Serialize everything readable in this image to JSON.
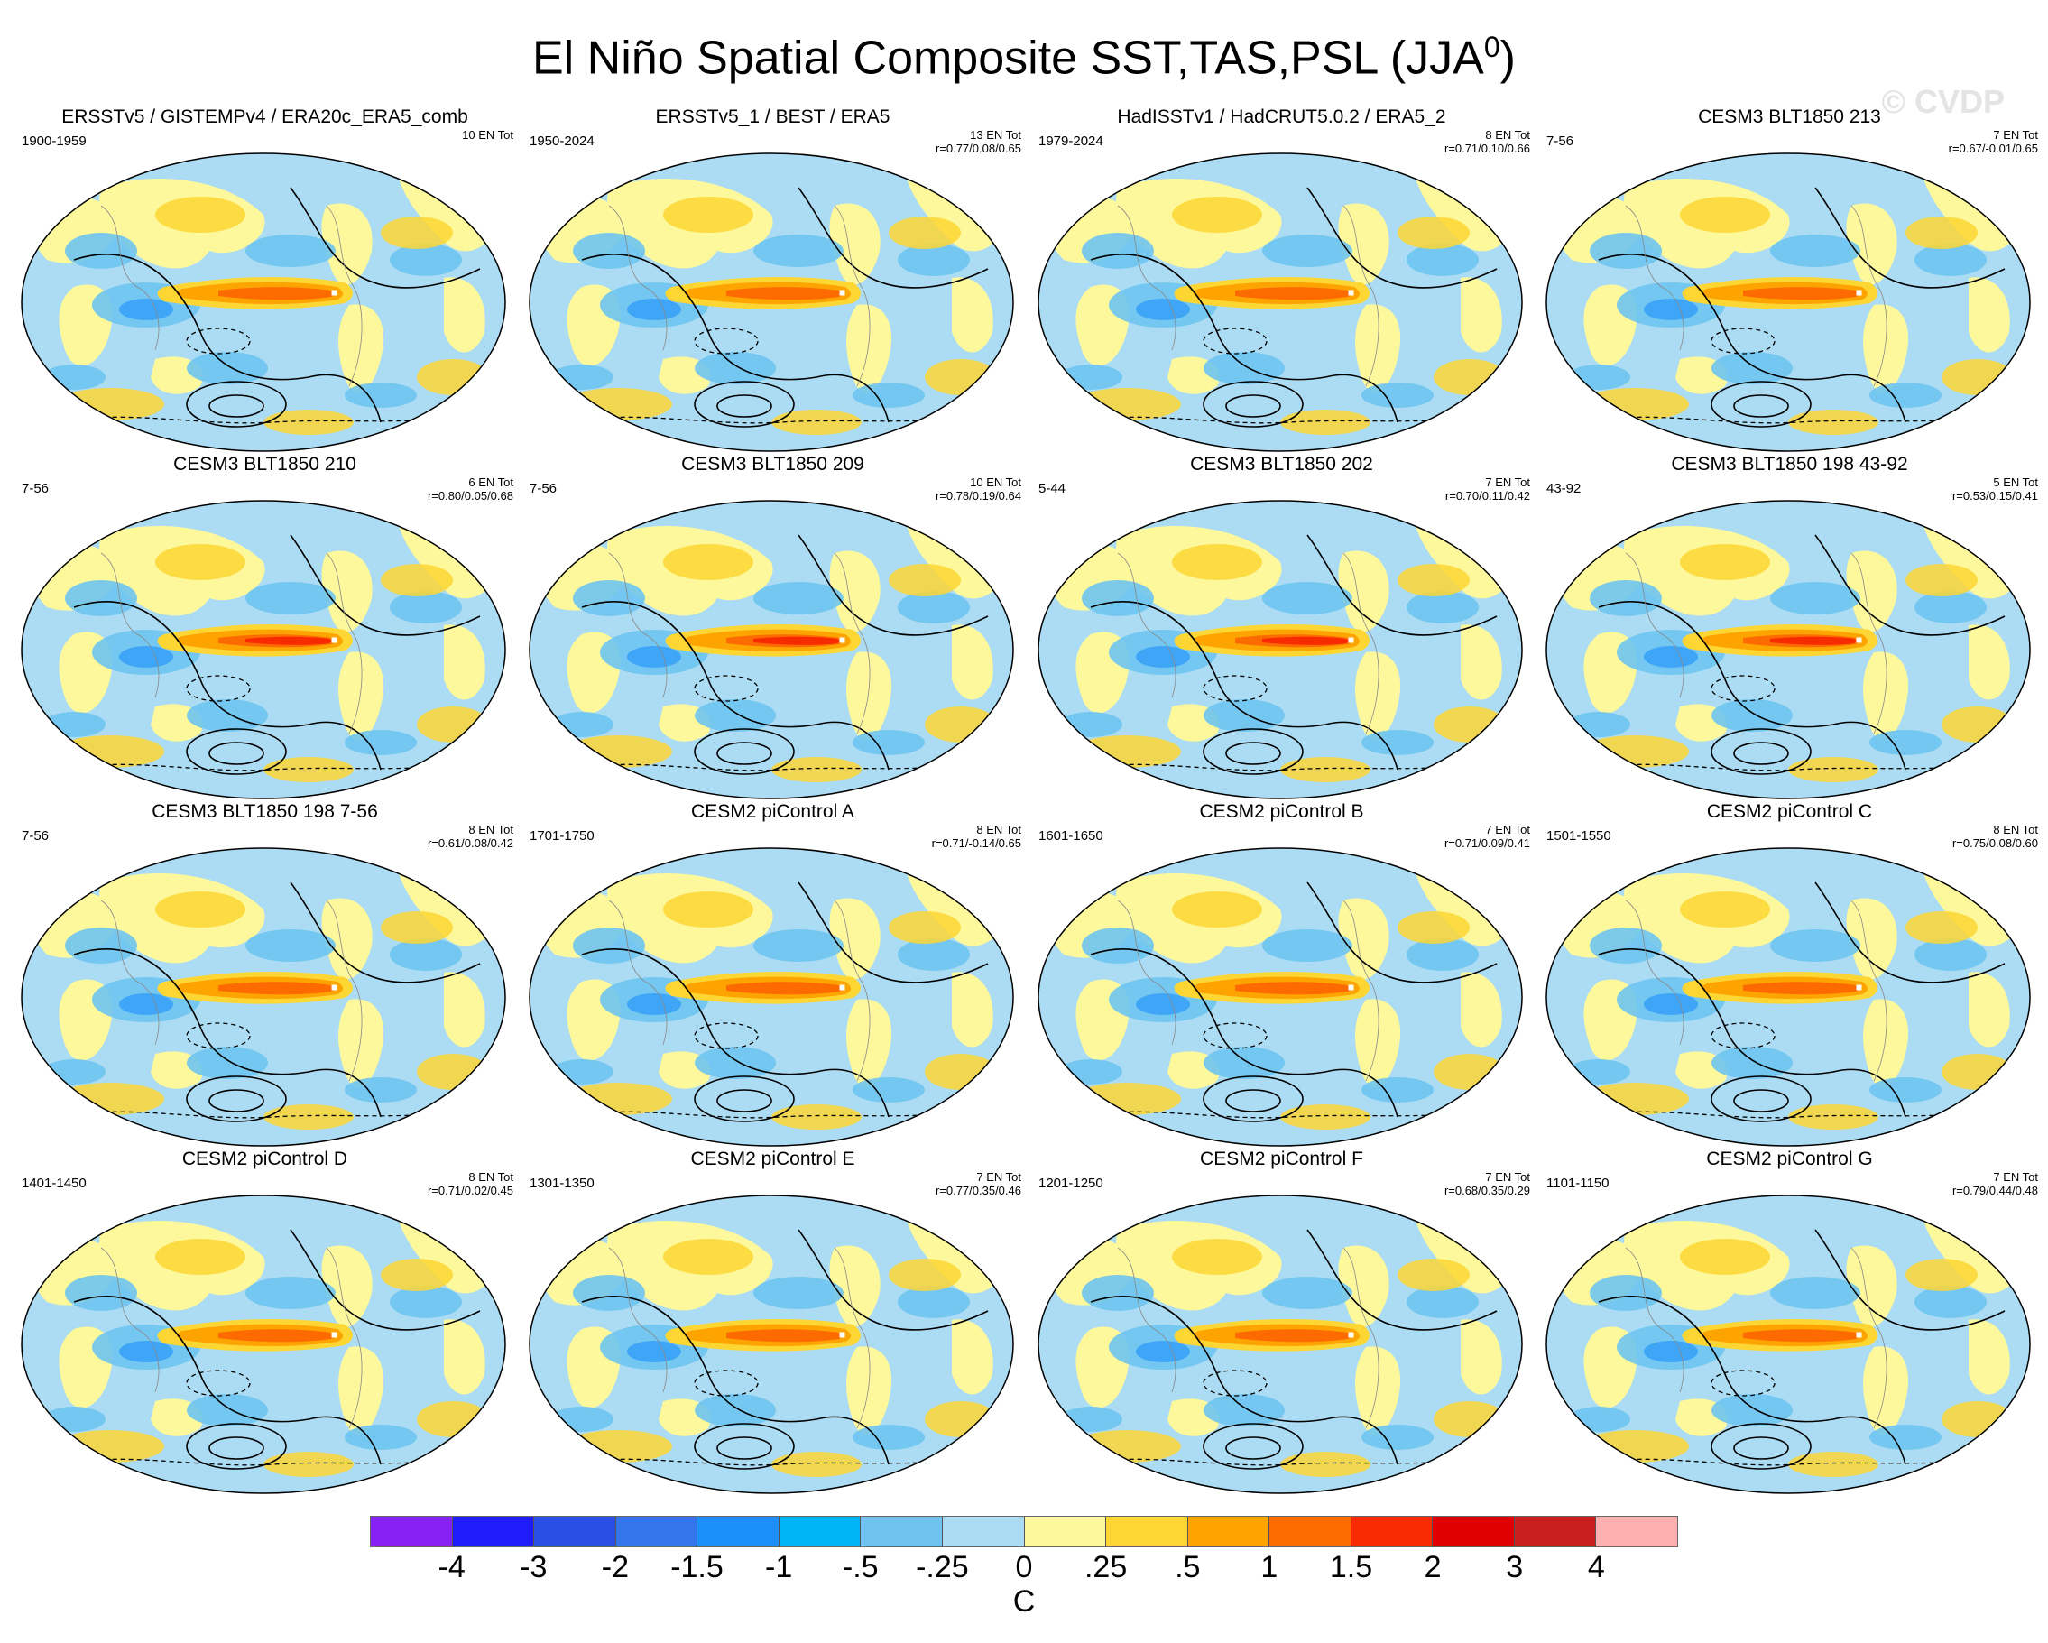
{
  "title_main": "El Niño Spatial Composite SST,TAS,PSL (JJA",
  "title_sup": "0",
  "title_close": ")",
  "watermark": "© CVDP",
  "colors": {
    "ocean_base": "#abdcf3",
    "land_base": "#fdf89c",
    "warm_1": "#fdd634",
    "warm_2": "#fda400",
    "warm_3": "#fc6a00",
    "warm_4": "#f72a00",
    "cold_1": "#6ec4ef",
    "cold_2": "#1c8ffb"
  },
  "panels": [
    {
      "title": "ERSSTv5 / GISTEMPv4 / ERA20c_ERA5_comb",
      "years": "1900-1959",
      "count": "10 EN Tot",
      "r": ""
    },
    {
      "title": "ERSSTv5_1 / BEST / ERA5",
      "years": "1950-2024",
      "count": "13 EN Tot",
      "r": "r=0.77/0.08/0.65"
    },
    {
      "title": "HadISSTv1 / HadCRUT5.0.2 / ERA5_2",
      "years": "1979-2024",
      "count": "8 EN Tot",
      "r": "r=0.71/0.10/0.66"
    },
    {
      "title": "CESM3 BLT1850 213",
      "years": "7-56",
      "count": "7 EN Tot",
      "r": "r=0.67/-0.01/0.65"
    },
    {
      "title": "CESM3 BLT1850 210",
      "years": "7-56",
      "count": "6 EN Tot",
      "r": "r=0.80/0.05/0.68"
    },
    {
      "title": "CESM3 BLT1850 209",
      "years": "7-56",
      "count": "10 EN Tot",
      "r": "r=0.78/0.19/0.64"
    },
    {
      "title": "CESM3 BLT1850 202",
      "years": "5-44",
      "count": "7 EN Tot",
      "r": "r=0.70/0.11/0.42"
    },
    {
      "title": "CESM3 BLT1850 198 43-92",
      "years": "43-92",
      "count": "5 EN Tot",
      "r": "r=0.53/0.15/0.41"
    },
    {
      "title": "CESM3 BLT1850 198 7-56",
      "years": "7-56",
      "count": "8 EN Tot",
      "r": "r=0.61/0.08/0.42"
    },
    {
      "title": "CESM2 piControl A",
      "years": "1701-1750",
      "count": "8 EN Tot",
      "r": "r=0.71/-0.14/0.65"
    },
    {
      "title": "CESM2 piControl B",
      "years": "1601-1650",
      "count": "7 EN Tot",
      "r": "r=0.71/0.09/0.41"
    },
    {
      "title": "CESM2 piControl C",
      "years": "1501-1550",
      "count": "8 EN Tot",
      "r": "r=0.75/0.08/0.60"
    },
    {
      "title": "CESM2 piControl D",
      "years": "1401-1450",
      "count": "8 EN Tot",
      "r": "r=0.71/0.02/0.45"
    },
    {
      "title": "CESM2 piControl E",
      "years": "1301-1350",
      "count": "7 EN Tot",
      "r": "r=0.77/0.35/0.46"
    },
    {
      "title": "CESM2 piControl F",
      "years": "1201-1250",
      "count": "7 EN Tot",
      "r": "r=0.68/0.35/0.29"
    },
    {
      "title": "CESM2 piControl G",
      "years": "1101-1150",
      "count": "7 EN Tot",
      "r": "r=0.79/0.44/0.48"
    }
  ],
  "colorbar": {
    "unit": "C",
    "colors": [
      "#8721f3",
      "#1e1cf8",
      "#2a4fe4",
      "#3475ec",
      "#1c8ffb",
      "#00b4f8",
      "#6ec4ef",
      "#abdcf3",
      "#fdf89c",
      "#fdd634",
      "#fda400",
      "#fc6a00",
      "#f72a00",
      "#e00000",
      "#c81e1e",
      "#feafaf"
    ],
    "labels": [
      "-4",
      "-3",
      "-2",
      "-1.5",
      "-1",
      "-.5",
      "-.25",
      "0",
      ".25",
      ".5",
      "1",
      "1.5",
      "2",
      "3",
      "4"
    ]
  }
}
